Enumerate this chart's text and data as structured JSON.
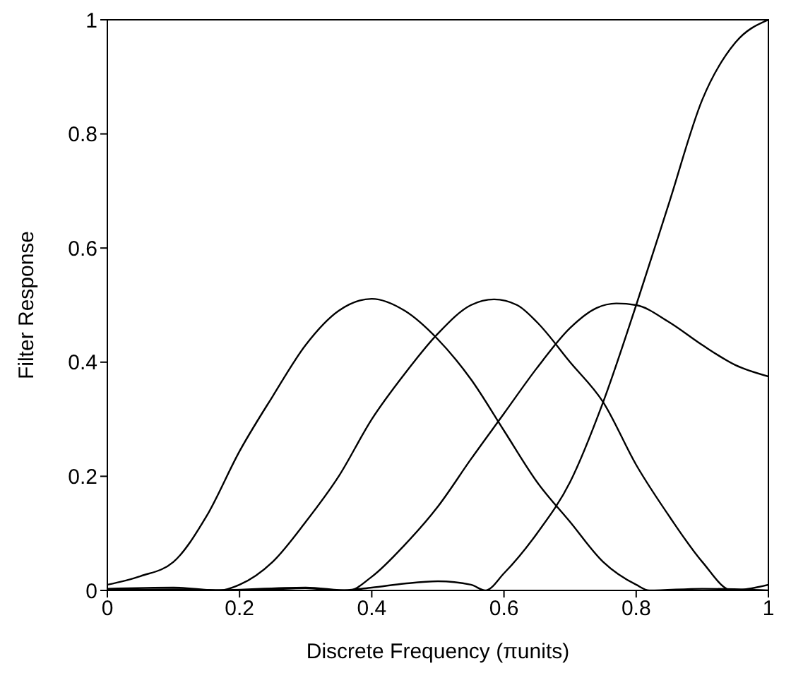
{
  "chart_data": {
    "type": "line",
    "xlabel": "Discrete Frequency (πunits)",
    "ylabel": "Filter Response",
    "xlim": [
      0,
      1
    ],
    "ylim": [
      0,
      1
    ],
    "xticks": [
      0,
      0.2,
      0.4,
      0.6,
      0.8,
      1
    ],
    "yticks": [
      0,
      0.2,
      0.4,
      0.6,
      0.8,
      1
    ],
    "marker": "none",
    "line_style": "solid",
    "series": [
      {
        "color": "#000000",
        "x": [
          0,
          0.05,
          0.1,
          0.15,
          0.2,
          0.25,
          0.3,
          0.35,
          0.4,
          0.45,
          0.5,
          0.55,
          0.6,
          0.65,
          0.7,
          0.75,
          0.8,
          0.82,
          0.9,
          1
        ],
        "values": [
          0.01,
          0.025,
          0.05,
          0.13,
          0.244,
          0.34,
          0.43,
          0.49,
          0.511,
          0.49,
          0.44,
          0.37,
          0.28,
          0.19,
          0.12,
          0.05,
          0.01,
          0,
          0.003,
          0
        ]
      },
      {
        "color": "#000000",
        "x": [
          0,
          0.1,
          0.17,
          0.2,
          0.25,
          0.3,
          0.35,
          0.4,
          0.45,
          0.5,
          0.55,
          0.585,
          0.62,
          0.65,
          0.7,
          0.75,
          0.8,
          0.85,
          0.9,
          0.945,
          1
        ],
        "values": [
          0.003,
          0.005,
          0,
          0.01,
          0.05,
          0.12,
          0.2,
          0.3,
          0.38,
          0.45,
          0.5,
          0.51,
          0.5,
          0.47,
          0.4,
          0.33,
          0.22,
          0.13,
          0.05,
          0,
          0.01
        ]
      },
      {
        "color": "#000000",
        "x": [
          0,
          0.15,
          0.3,
          0.365,
          0.4,
          0.45,
          0.5,
          0.55,
          0.6,
          0.65,
          0.7,
          0.74,
          0.77,
          0.8,
          0.85,
          0.9,
          0.95,
          1
        ],
        "values": [
          0.002,
          0,
          0.005,
          0,
          0.024,
          0.08,
          0.147,
          0.23,
          0.31,
          0.39,
          0.46,
          0.495,
          0.503,
          0.5,
          0.47,
          0.43,
          0.395,
          0.375
        ]
      },
      {
        "color": "#000000",
        "x": [
          0,
          0.1,
          0.2,
          0.3,
          0.35,
          0.4,
          0.45,
          0.5,
          0.55,
          0.572,
          0.6,
          0.65,
          0.7,
          0.75,
          0.8,
          0.85,
          0.9,
          0.95,
          1
        ],
        "values": [
          0,
          0.002,
          0,
          0.004,
          0,
          0.005,
          0.012,
          0.016,
          0.01,
          0,
          0.03,
          0.1,
          0.19,
          0.33,
          0.5,
          0.68,
          0.86,
          0.96,
          1
        ]
      }
    ]
  }
}
